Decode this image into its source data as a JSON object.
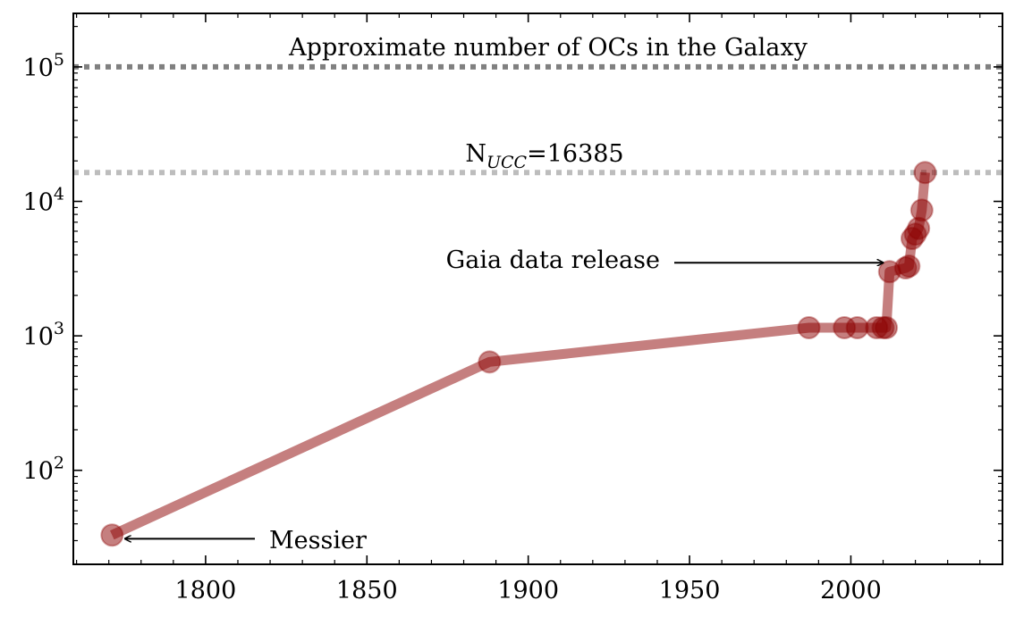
{
  "chart_data": {
    "type": "line",
    "title": "",
    "xlabel": "",
    "ylabel": "",
    "x_scale": "linear",
    "y_scale": "log",
    "xlim": [
      1759,
      2047
    ],
    "ylim": [
      20,
      250000
    ],
    "x_ticks": [
      1800,
      1850,
      1900,
      1950,
      2000
    ],
    "x_tick_labels": [
      "1800",
      "1850",
      "1900",
      "1950",
      "2000"
    ],
    "y_ticks": [
      100,
      1000,
      10000,
      100000
    ],
    "y_tick_labels": [
      {
        "base": "10",
        "exp": "2"
      },
      {
        "base": "10",
        "exp": "3"
      },
      {
        "base": "10",
        "exp": "4"
      },
      {
        "base": "10",
        "exp": "5"
      }
    ],
    "grid": false,
    "series": [
      {
        "color": "#8b0000",
        "points": [
          [
            1771,
            33
          ],
          [
            1888,
            640
          ],
          [
            1987,
            1150
          ],
          [
            1998,
            1150
          ],
          [
            2002,
            1150
          ],
          [
            2008,
            1150
          ],
          [
            2010,
            1150
          ],
          [
            2011,
            1150
          ],
          [
            2012,
            3000
          ],
          [
            2017,
            3200
          ],
          [
            2018,
            3300
          ],
          [
            2019,
            5300
          ],
          [
            2020,
            5700
          ],
          [
            2021,
            6300
          ],
          [
            2022,
            8600
          ],
          [
            2023,
            16385
          ]
        ]
      }
    ],
    "reference_lines": [
      {
        "y": 100000,
        "label": "Approximate number of OCs in the Galaxy",
        "color": "#808080"
      },
      {
        "y": 16385,
        "label_main": "N",
        "label_sub": "UCC",
        "label_value": "=16385",
        "color": "#bdbdbd"
      }
    ],
    "annotations": [
      {
        "text": "Gaia data release",
        "arrow_to": [
          2010,
          3500
        ]
      },
      {
        "text": "Messier",
        "arrow_to": [
          1775,
          31
        ]
      }
    ]
  }
}
